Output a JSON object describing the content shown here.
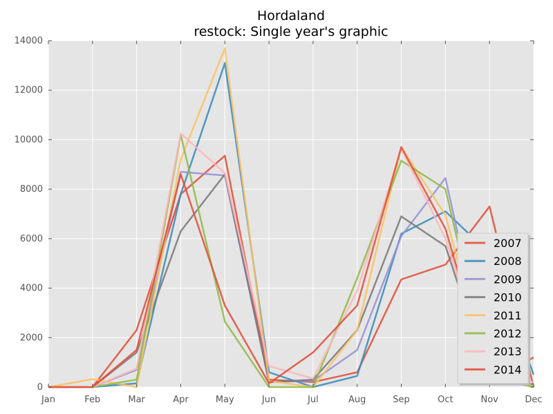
{
  "chart_data": {
    "type": "line",
    "title": "Hordaland",
    "subtitle": "restock: Single year's graphic",
    "xlabel": "",
    "ylabel": "",
    "categories": [
      "Jan",
      "Feb",
      "Mar",
      "Apr",
      "May",
      "Jun",
      "Jul",
      "Aug",
      "Sep",
      "Oct",
      "Nov",
      "Dec"
    ],
    "ylim": [
      0,
      14000
    ],
    "yticks": [
      0,
      2000,
      4000,
      6000,
      8000,
      10000,
      12000,
      14000
    ],
    "grid": true,
    "legend_position": "lower-right",
    "series": [
      {
        "name": "2007",
        "color": "#e24a33",
        "values": [
          0,
          0,
          2300,
          7800,
          9350,
          300,
          200,
          600,
          4350,
          4950,
          7300,
          0
        ]
      },
      {
        "name": "2008",
        "color": "#348abd",
        "values": [
          0,
          0,
          150,
          7800,
          13100,
          600,
          0,
          450,
          6200,
          7100,
          5400,
          500
        ]
      },
      {
        "name": "2009",
        "color": "#988ed5",
        "values": [
          0,
          0,
          700,
          8700,
          8550,
          200,
          250,
          1500,
          6100,
          8450,
          400,
          100
        ]
      },
      {
        "name": "2010",
        "color": "#777777",
        "values": [
          0,
          0,
          1400,
          6300,
          8600,
          200,
          300,
          2300,
          6900,
          5700,
          300,
          100
        ]
      },
      {
        "name": "2011",
        "color": "#fbc15e",
        "values": [
          0,
          320,
          0,
          9200,
          13700,
          250,
          0,
          2300,
          9700,
          6950,
          300,
          50
        ]
      },
      {
        "name": "2012",
        "color": "#8eba42",
        "values": [
          0,
          0,
          300,
          10200,
          2650,
          0,
          0,
          4400,
          9150,
          8000,
          400,
          0
        ]
      },
      {
        "name": "2013",
        "color": "#ffb5b8",
        "values": [
          0,
          0,
          750,
          10250,
          8650,
          850,
          350,
          3900,
          9650,
          6000,
          450,
          200
        ]
      },
      {
        "name": "2014",
        "color": "#e24a33",
        "values": [
          0,
          0,
          1500,
          8600,
          3300,
          150,
          1400,
          3300,
          9700,
          6400,
          300,
          1200
        ]
      }
    ]
  }
}
